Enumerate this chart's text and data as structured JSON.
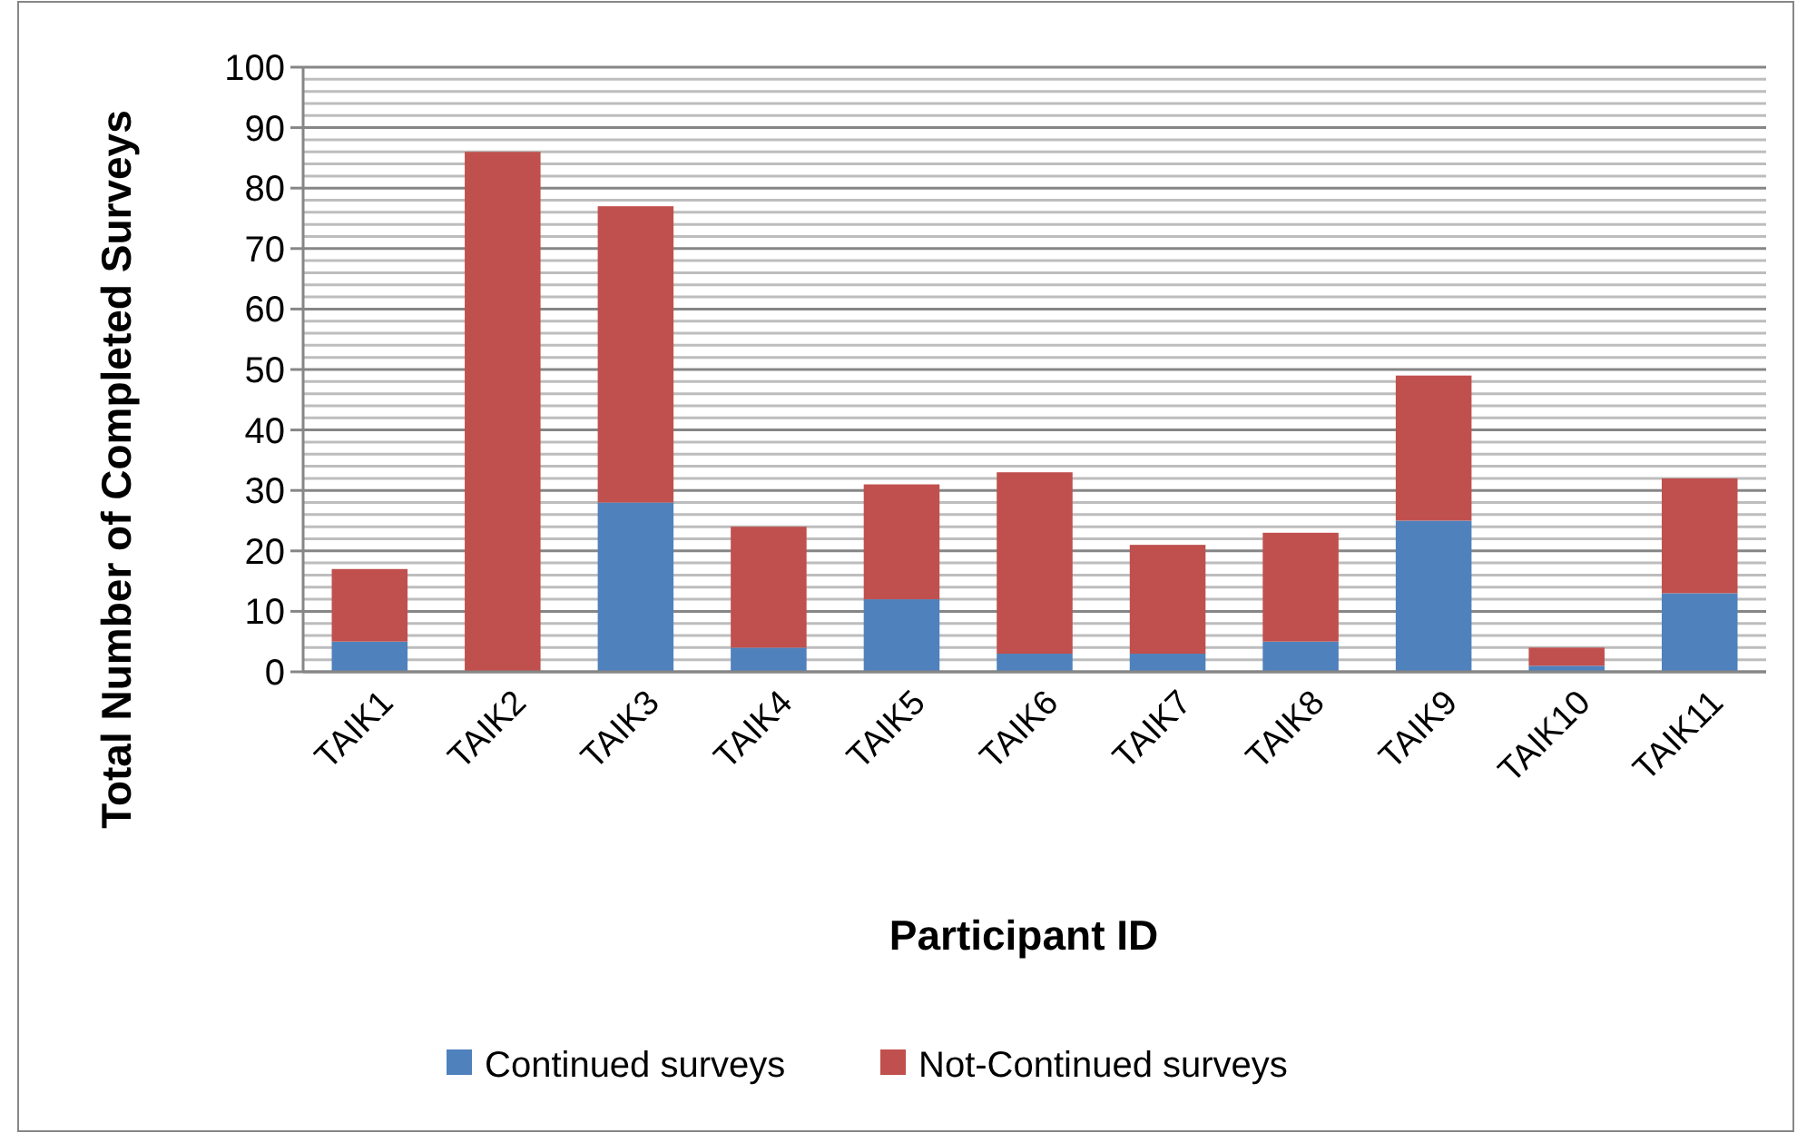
{
  "chart_data": {
    "type": "bar",
    "stacked": true,
    "xlabel": "Participant ID",
    "ylabel": "Total Number of Completed Surveys",
    "categories": [
      "TAIK1",
      "TAIK2",
      "TAIK3",
      "TAIK4",
      "TAIK5",
      "TAIK6",
      "TAIK7",
      "TAIK8",
      "TAIK9",
      "TAIK10",
      "TAIK11"
    ],
    "series": [
      {
        "name": "Continued surveys",
        "color": "#4f81bd",
        "values": [
          5,
          0,
          28,
          4,
          12,
          3,
          3,
          5,
          25,
          1,
          13
        ]
      },
      {
        "name": "Not-Continued surveys",
        "color": "#c0504d",
        "values": [
          12,
          86,
          49,
          20,
          19,
          30,
          18,
          18,
          24,
          3,
          19
        ]
      }
    ],
    "ylim": [
      0,
      100
    ],
    "yticks": [
      0,
      {
        "value": 2,
        "label": null
      },
      {
        "value": 4,
        "label": null
      },
      {
        "value": 6,
        "label": null
      },
      {
        "value": 8,
        "label": null
      },
      10,
      {
        "value": 12,
        "label": null
      },
      {
        "value": 14,
        "label": null
      },
      {
        "value": 16,
        "label": null
      },
      {
        "value": 18,
        "label": null
      },
      20,
      {
        "value": 22,
        "label": null
      },
      {
        "value": 24,
        "label": null
      },
      {
        "value": 26,
        "label": null
      },
      {
        "value": 28,
        "label": null
      },
      30,
      {
        "value": 32,
        "label": null
      },
      {
        "value": 34,
        "label": null
      },
      {
        "value": 36,
        "label": null
      },
      {
        "value": 38,
        "label": null
      },
      40,
      {
        "value": 42,
        "label": null
      },
      {
        "value": 44,
        "label": null
      },
      {
        "value": 46,
        "label": null
      },
      {
        "value": 48,
        "label": null
      },
      50,
      {
        "value": 52,
        "label": null
      },
      {
        "value": 54,
        "label": null
      },
      {
        "value": 56,
        "label": null
      },
      {
        "value": 58,
        "label": null
      },
      60,
      {
        "value": 62,
        "label": null
      },
      {
        "value": 64,
        "label": null
      },
      {
        "value": 66,
        "label": null
      },
      {
        "value": 68,
        "label": null
      },
      70,
      {
        "value": 72,
        "label": null
      },
      {
        "value": 74,
        "label": null
      },
      {
        "value": 76,
        "label": null
      },
      {
        "value": 78,
        "label": null
      },
      80,
      {
        "value": 82,
        "label": null
      },
      {
        "value": 84,
        "label": null
      },
      {
        "value": 86,
        "label": null
      },
      {
        "value": 88,
        "label": null
      },
      90,
      {
        "value": 92,
        "label": null
      },
      {
        "value": 94,
        "label": null
      },
      {
        "value": 96,
        "label": null
      },
      {
        "value": 98,
        "label": null
      },
      100
    ],
    "grid": "y",
    "legend": "bottom"
  }
}
